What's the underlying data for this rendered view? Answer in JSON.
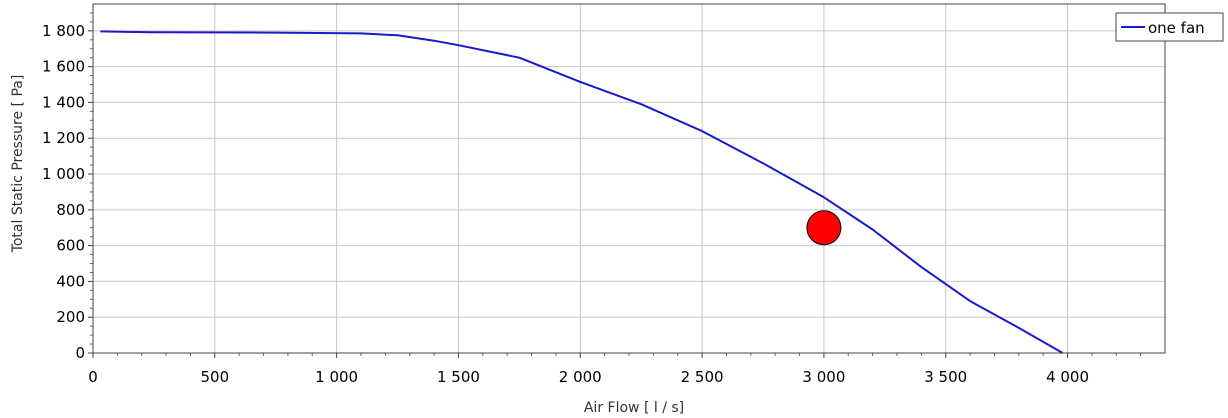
{
  "chart_data": {
    "type": "line",
    "xlabel": "Air Flow  [ l / s]",
    "ylabel": "Total Static Pressure  [ Pa]",
    "xlim": [
      0,
      4400
    ],
    "ylim": [
      0,
      1950
    ],
    "x_ticks": [
      0,
      500,
      1000,
      1500,
      2000,
      2500,
      3000,
      3500,
      4000
    ],
    "x_tick_labels": [
      "0",
      "500",
      "1 000",
      "1 500",
      "2 000",
      "2 500",
      "3 000",
      "3 500",
      "4 000"
    ],
    "y_ticks": [
      0,
      200,
      400,
      600,
      800,
      1000,
      1200,
      1400,
      1600,
      1800
    ],
    "y_tick_labels": [
      "0",
      "200",
      "400",
      "600",
      "800",
      "1 000",
      "1 200",
      "1 400",
      "1 600",
      "1 800"
    ],
    "grid": true,
    "legend_position": "top-right",
    "series": [
      {
        "name": "one fan",
        "color": "#1a1acc",
        "x": [
          30,
          250,
          750,
          1100,
          1250,
          1400,
          1500,
          1750,
          2000,
          2250,
          2500,
          2750,
          3000,
          3200,
          3400,
          3600,
          3800,
          3980
        ],
        "y": [
          1797,
          1792,
          1790,
          1786,
          1775,
          1745,
          1720,
          1650,
          1515,
          1390,
          1240,
          1060,
          870,
          690,
          480,
          290,
          140,
          0
        ]
      }
    ],
    "points": [
      {
        "x": 3000,
        "y": 700,
        "color": "#ff0000"
      }
    ]
  }
}
